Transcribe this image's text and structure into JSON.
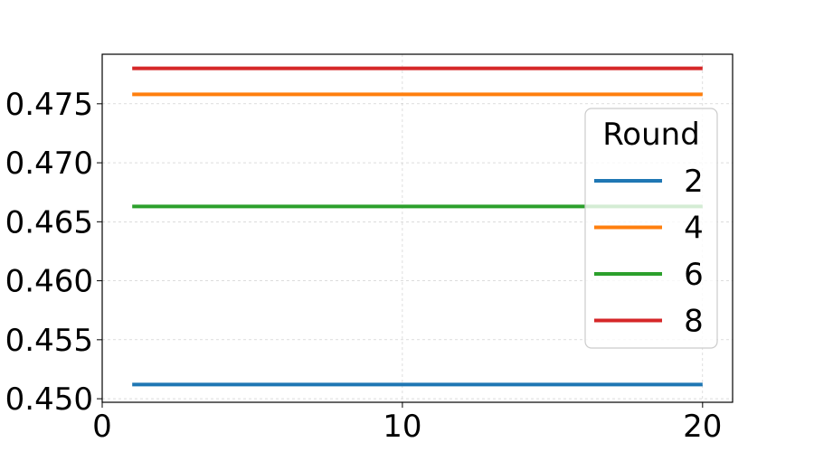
{
  "chart_data": {
    "type": "line",
    "title": "",
    "xlabel": "",
    "ylabel": "",
    "xlim": [
      0,
      21
    ],
    "ylim": [
      0.4497,
      0.4792
    ],
    "x_ticks": [
      0,
      10,
      20
    ],
    "x_tick_labels": [
      "0",
      "10",
      "20"
    ],
    "y_ticks": [
      0.45,
      0.455,
      0.46,
      0.465,
      0.47,
      0.475
    ],
    "y_tick_labels": [
      "0.450",
      "0.455",
      "0.460",
      "0.465",
      "0.470",
      "0.475"
    ],
    "grid": true,
    "legend": {
      "title": "Round",
      "placement": "right"
    },
    "x": [
      1,
      20
    ],
    "series": [
      {
        "name": "2",
        "color": "#1f77b4",
        "values": [
          0.4512,
          0.4512
        ]
      },
      {
        "name": "4",
        "color": "#ff7f0e",
        "values": [
          0.4758,
          0.4758
        ]
      },
      {
        "name": "6",
        "color": "#2ca02c",
        "values": [
          0.4663,
          0.4663
        ]
      },
      {
        "name": "8",
        "color": "#d62728",
        "values": [
          0.478,
          0.478
        ]
      }
    ]
  }
}
